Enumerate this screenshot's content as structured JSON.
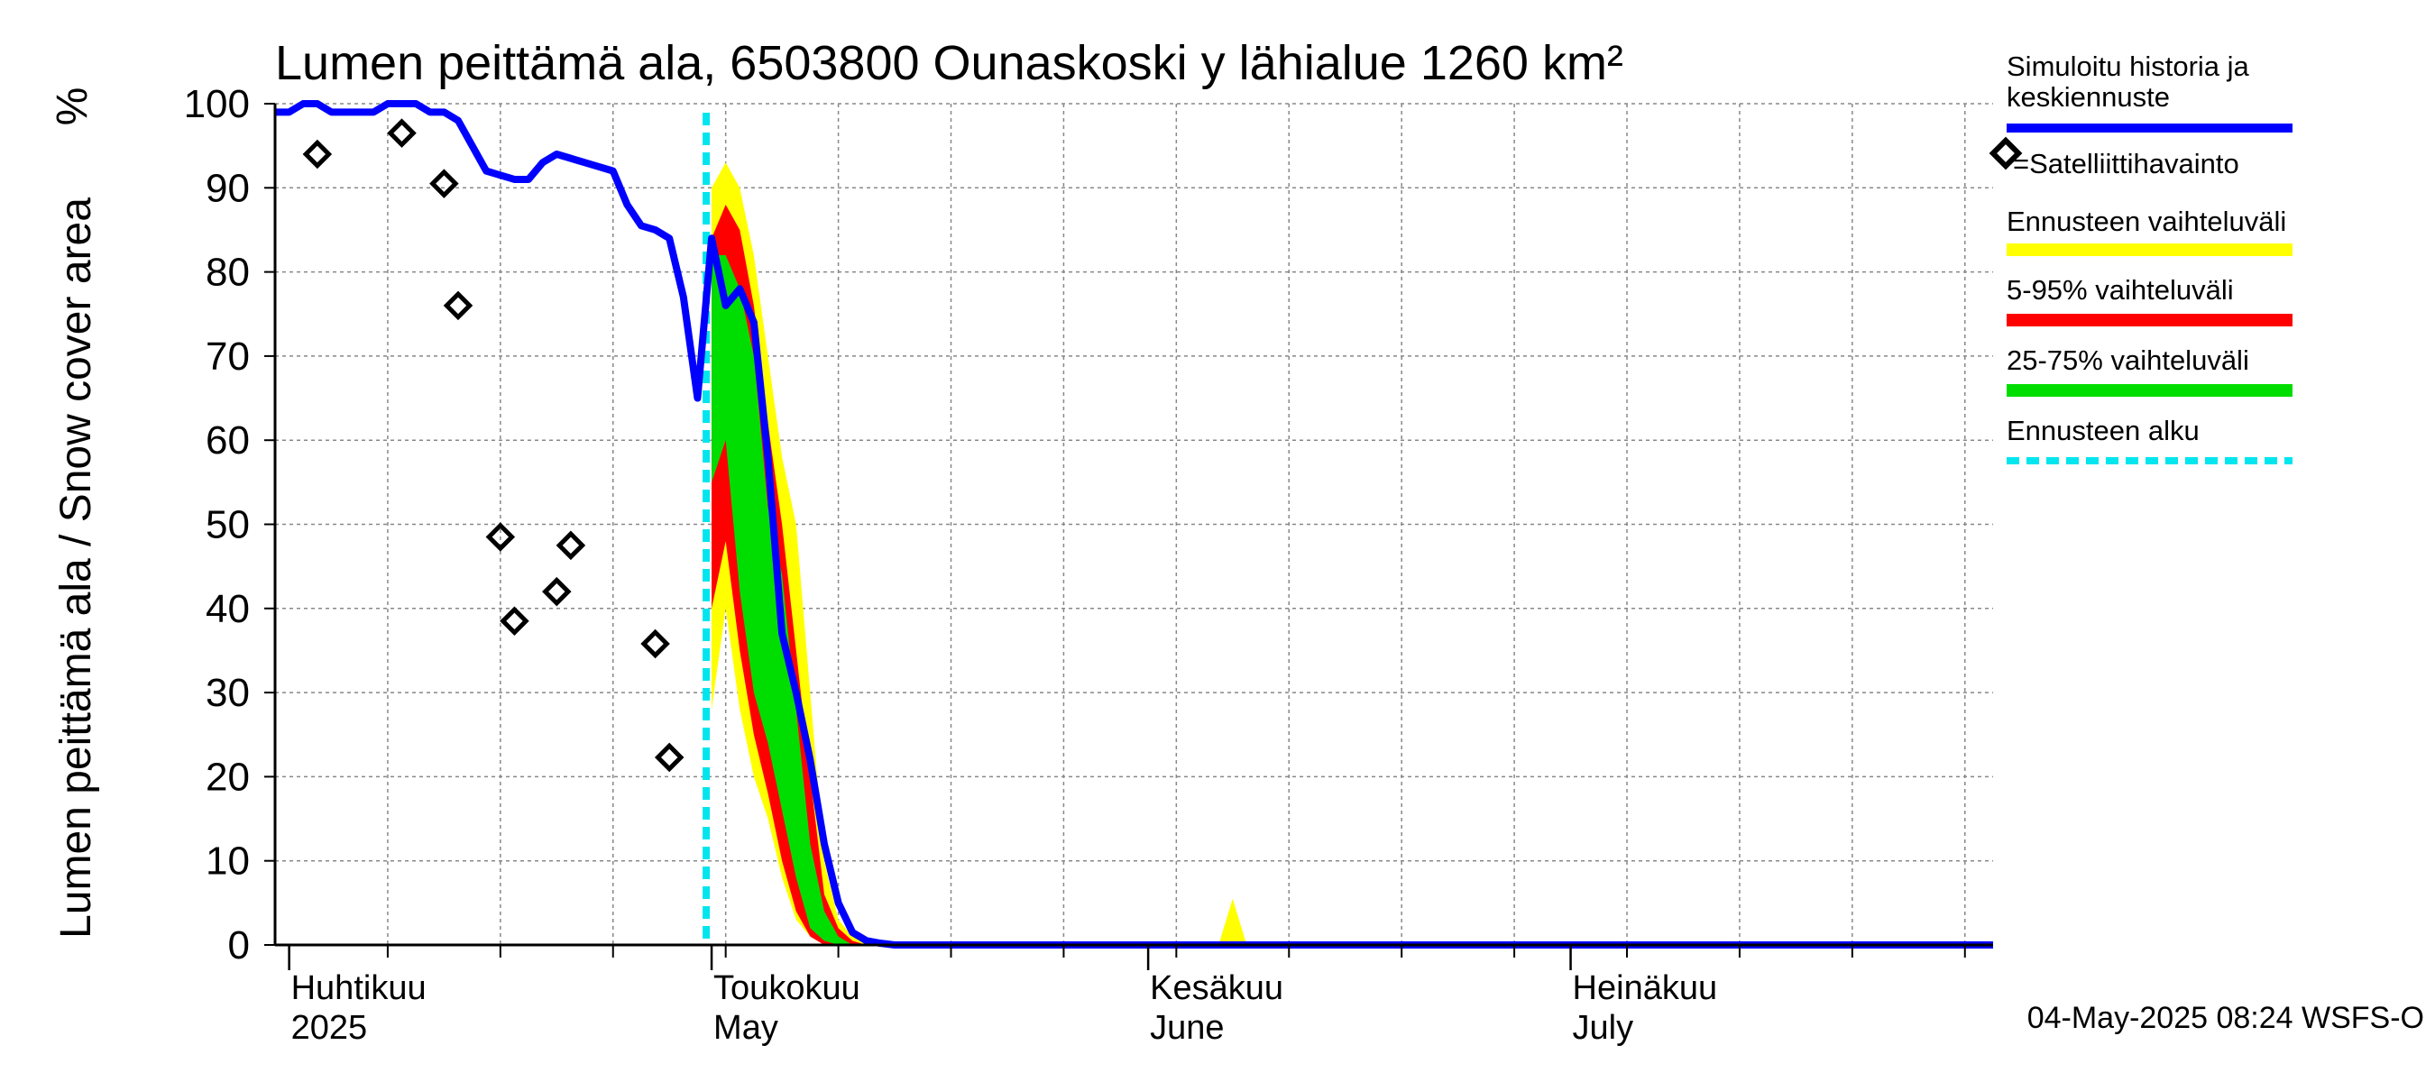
{
  "chart_data": {
    "type": "area",
    "title": "Lumen peittämä ala, 6503800 Ounaskoski y lähialue 1260 km²",
    "ylabel": "Lumen peittämä ala / Snow cover area",
    "yunit": "%",
    "ylim": [
      0,
      100
    ],
    "yticks": [
      0,
      10,
      20,
      30,
      40,
      50,
      60,
      70,
      80,
      90,
      100
    ],
    "xlim": [
      "2025-03-31",
      "2025-07-31"
    ],
    "month_labels": [
      {
        "line1": "Huhtikuu",
        "line2": "2025",
        "date": "2025-04-01"
      },
      {
        "line1": "Toukokuu",
        "line2": "May",
        "date": "2025-05-01"
      },
      {
        "line1": "Kesäkuu",
        "line2": "June",
        "date": "2025-06-01"
      },
      {
        "line1": "Heinäkuu",
        "line2": "July",
        "date": "2025-07-01"
      }
    ],
    "timestamp": "04-May-2025 08:24 WSFS-O",
    "forecast_start": "2025-05-01",
    "grid": true,
    "legend_position": "right",
    "legend": {
      "history": "Simuloitu historia ja keskiennuste",
      "satellite": "=Satelliittihavainto",
      "range_full": "Ennusteen vaihteluväli",
      "range_5_95": "5-95% vaihteluväli",
      "range_25_75": "25-75% vaihteluväli",
      "forecast_start": "Ennusteen alku"
    },
    "colors": {
      "history": "#0000ff",
      "satellite": "#000000",
      "range_full": "#ffff00",
      "range_5_95": "#ff0000",
      "range_25_75": "#00dd00",
      "forecast_start": "#00e5ee",
      "grid": "#888888"
    },
    "simulated_history": [
      [
        "2025-03-31",
        99
      ],
      [
        "2025-04-01",
        99
      ],
      [
        "2025-04-02",
        100
      ],
      [
        "2025-04-03",
        100
      ],
      [
        "2025-04-04",
        99
      ],
      [
        "2025-04-05",
        99
      ],
      [
        "2025-04-06",
        99
      ],
      [
        "2025-04-07",
        99
      ],
      [
        "2025-04-08",
        100
      ],
      [
        "2025-04-09",
        100
      ],
      [
        "2025-04-10",
        100
      ],
      [
        "2025-04-11",
        99
      ],
      [
        "2025-04-12",
        99
      ],
      [
        "2025-04-13",
        98
      ],
      [
        "2025-04-14",
        95
      ],
      [
        "2025-04-15",
        92
      ],
      [
        "2025-04-16",
        91.5
      ],
      [
        "2025-04-17",
        91
      ],
      [
        "2025-04-18",
        91
      ],
      [
        "2025-04-19",
        93
      ],
      [
        "2025-04-20",
        94
      ],
      [
        "2025-04-21",
        93.5
      ],
      [
        "2025-04-22",
        93
      ],
      [
        "2025-04-23",
        92.5
      ],
      [
        "2025-04-24",
        92
      ],
      [
        "2025-04-25",
        88
      ],
      [
        "2025-04-26",
        85.5
      ],
      [
        "2025-04-27",
        85
      ],
      [
        "2025-04-28",
        84
      ],
      [
        "2025-04-29",
        77
      ],
      [
        "2025-04-30",
        65
      ],
      [
        "2025-05-01",
        84
      ],
      [
        "2025-05-02",
        76
      ],
      [
        "2025-05-03",
        78
      ],
      [
        "2025-05-04",
        74
      ],
      [
        "2025-05-05",
        58
      ],
      [
        "2025-05-06",
        37
      ],
      [
        "2025-05-07",
        30
      ],
      [
        "2025-05-08",
        22
      ],
      [
        "2025-05-09",
        12
      ],
      [
        "2025-05-10",
        5
      ],
      [
        "2025-05-11",
        1.5
      ],
      [
        "2025-05-12",
        0.5
      ],
      [
        "2025-05-13",
        0.2
      ],
      [
        "2025-05-14",
        0
      ],
      [
        "2025-05-20",
        0
      ],
      [
        "2025-06-01",
        0
      ],
      [
        "2025-07-01",
        0
      ],
      [
        "2025-07-31",
        0
      ]
    ],
    "satellite_observations": [
      [
        "2025-04-03",
        94
      ],
      [
        "2025-04-09",
        96.5
      ],
      [
        "2025-04-12",
        90.5
      ],
      [
        "2025-04-13",
        76
      ],
      [
        "2025-04-16",
        48.5
      ],
      [
        "2025-04-17",
        38.5
      ],
      [
        "2025-04-20",
        42
      ],
      [
        "2025-04-21",
        47.5
      ],
      [
        "2025-04-27",
        35.8
      ],
      [
        "2025-04-28",
        22.3
      ]
    ],
    "forecast_range_full": [
      [
        "2025-05-01",
        28,
        90
      ],
      [
        "2025-05-02",
        40,
        93
      ],
      [
        "2025-05-03",
        28,
        90
      ],
      [
        "2025-05-04",
        20,
        82
      ],
      [
        "2025-05-05",
        15,
        70
      ],
      [
        "2025-05-06",
        8,
        58
      ],
      [
        "2025-05-07",
        3,
        50
      ],
      [
        "2025-05-08",
        1,
        30
      ],
      [
        "2025-05-09",
        0,
        10
      ],
      [
        "2025-05-10",
        0,
        3
      ],
      [
        "2025-05-11",
        0,
        1
      ],
      [
        "2025-05-12",
        0,
        0.4
      ],
      [
        "2025-05-13",
        0,
        0
      ]
    ],
    "forecast_spike": [
      [
        "2025-06-06",
        0
      ],
      [
        "2025-06-07",
        5.5
      ],
      [
        "2025-06-08",
        0
      ]
    ],
    "forecast_range_5_95": [
      [
        "2025-05-01",
        40,
        84
      ],
      [
        "2025-05-02",
        48,
        88
      ],
      [
        "2025-05-03",
        35,
        85
      ],
      [
        "2025-05-04",
        25,
        76
      ],
      [
        "2025-05-05",
        18,
        62
      ],
      [
        "2025-05-06",
        10,
        50
      ],
      [
        "2025-05-07",
        4,
        35
      ],
      [
        "2025-05-08",
        1,
        20
      ],
      [
        "2025-05-09",
        0,
        6
      ],
      [
        "2025-05-10",
        0,
        2
      ],
      [
        "2025-05-11",
        0,
        0.5
      ],
      [
        "2025-05-12",
        0,
        0
      ]
    ],
    "forecast_range_25_75": [
      [
        "2025-05-01",
        55,
        82
      ],
      [
        "2025-05-02",
        60,
        82
      ],
      [
        "2025-05-03",
        42,
        78
      ],
      [
        "2025-05-04",
        30,
        70
      ],
      [
        "2025-05-05",
        24,
        52
      ],
      [
        "2025-05-06",
        16,
        44
      ],
      [
        "2025-05-07",
        8,
        28
      ],
      [
        "2025-05-08",
        2,
        12
      ],
      [
        "2025-05-09",
        0.5,
        4
      ],
      [
        "2025-05-10",
        0,
        1
      ],
      [
        "2025-05-11",
        0,
        0
      ]
    ]
  }
}
